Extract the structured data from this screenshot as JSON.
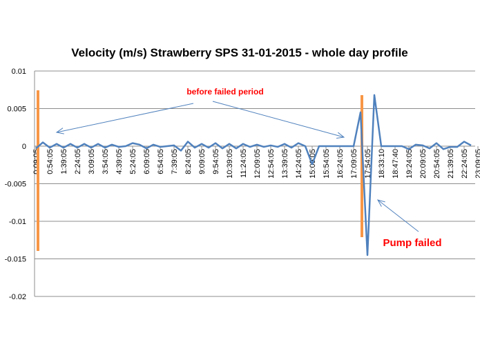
{
  "chart_data": {
    "type": "line",
    "title": "Velocity (m/s) Strawberry SPS 31-01-2015 - whole day profile",
    "xlabel": "",
    "ylabel": "",
    "ylim": [
      -0.02,
      0.01
    ],
    "yticks": [
      0.01,
      0.005,
      0,
      -0.005,
      -0.01,
      -0.015,
      -0.02
    ],
    "ytick_labels": [
      "0.01",
      "0.005",
      "0",
      "-0.005",
      "-0.01",
      "-0.015",
      "-0.02"
    ],
    "grid": true,
    "legend": "none",
    "xtick_labels": [
      "0:09:05",
      "0:54:05",
      "1:39:05",
      "2:24:05",
      "3:09:05",
      "3:54:05",
      "4:39:05",
      "5:24:05",
      "6:09:05",
      "6:54:05",
      "7:39:05",
      "8:24:05",
      "9:09:05",
      "9:54:05",
      "10:39:05",
      "11:24:05",
      "12:09:05",
      "12:54:05",
      "13:39:05",
      "14:24:05",
      "15:09:05",
      "15:54:05",
      "16:24:05",
      "17:09:05",
      "17:54:05",
      "18:33:10",
      "18:47:40",
      "19:24:05",
      "20:09:05",
      "20:54:05",
      "21:39:05",
      "22:24:05",
      "23:09:05"
    ],
    "series": [
      {
        "color": "#4f81bd",
        "values": [
          -0.0003,
          0.0005,
          -0.0002,
          0.0003,
          -0.0002,
          0.0003,
          -0.0002,
          0.0003,
          -0.0002,
          0.0003,
          -0.0002,
          0.0002,
          -0.0001,
          0,
          0.0004,
          0.0002,
          -0.0003,
          0.0002,
          -0.0001,
          0,
          0.0001,
          -0.0006,
          0.0006,
          -0.0002,
          0.0003,
          -0.0002,
          0.0004,
          -0.0003,
          0.0003,
          -0.0003,
          0.0003,
          -0.0001,
          0.0002,
          -0.0001,
          0.0001,
          -0.0001,
          0.0003,
          -0.0002,
          0.0004,
          0,
          -0.0024,
          0,
          0,
          0,
          0,
          0,
          0,
          0.0045,
          -0.0145,
          0.0068,
          0,
          0,
          0,
          0,
          -0.0004,
          0.0002,
          0.0001,
          -0.0003,
          0.0004,
          -0.0004,
          -0.0001,
          -0.0001,
          0.0006,
          0.0001
        ]
      }
    ],
    "annotations": [
      {
        "text": "before failed period",
        "color": "#ff0000"
      },
      {
        "text": "Pump failed",
        "color": "#ff0000"
      }
    ],
    "marker_color": "#f79646"
  }
}
